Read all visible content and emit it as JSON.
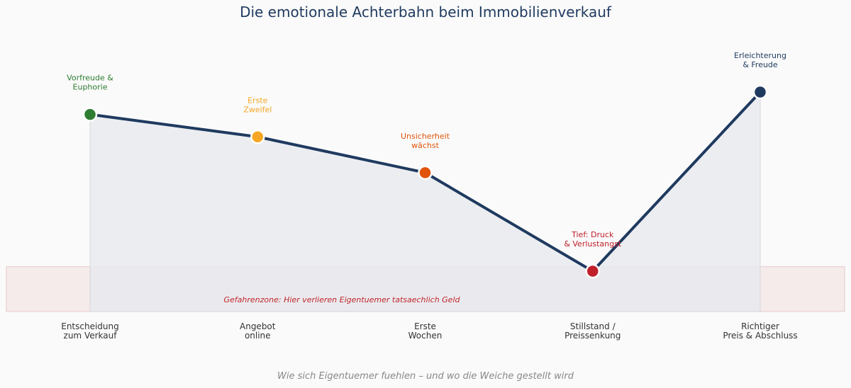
{
  "chart_data": {
    "type": "line",
    "title": "Die emotionale Achterbahn beim Immobilienverkauf",
    "subtitle": "Wie sich Eigentuemer fuehlen – und wo die Weiche gestellt wird",
    "categories": [
      [
        "Entscheidung",
        "zum Verkauf"
      ],
      [
        "Angebot",
        "online"
      ],
      [
        "Erste",
        "Wochen"
      ],
      [
        "Stillstand /",
        "Preissenkung"
      ],
      [
        "Richtiger",
        "Preis & Abschluss"
      ]
    ],
    "values": [
      80,
      70,
      54,
      10,
      90
    ],
    "ylim": [
      0,
      100
    ],
    "point_labels": [
      [
        "Vorfreude &",
        "Euphorie"
      ],
      [
        "Erste",
        "Zweifel"
      ],
      [
        "Unsicherheit",
        "wächst"
      ],
      [
        "Tief: Druck",
        "& Verlustangst"
      ],
      [
        "Erleichterung",
        "& Freude"
      ]
    ],
    "point_colors": [
      "#2e7d32",
      "#f5a623",
      "#e0540b",
      "#c0202a",
      "#1f3a5f"
    ],
    "line_color": "#1f3a5f",
    "area_fill": "#e8eaee",
    "danger_zone": {
      "range": [
        -8,
        12
      ],
      "label": "Gefahrenzone: Hier verlieren Eigentuemer tatsaechlich Geld",
      "color": "#c0262d"
    },
    "grid": false,
    "legend": "none"
  }
}
